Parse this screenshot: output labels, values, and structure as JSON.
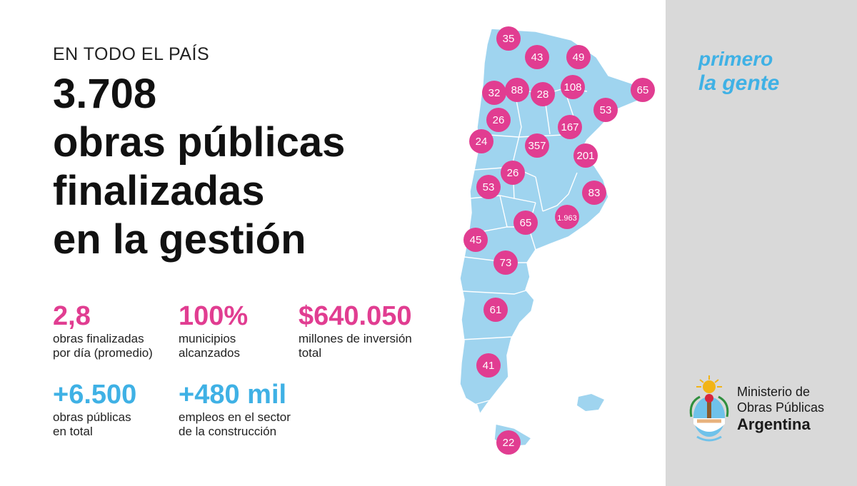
{
  "kicker": "EN TODO EL PAÍS",
  "headline": {
    "line1": "3.708",
    "line2": "obras públicas",
    "line3": "finalizadas",
    "line4": "en la gestión"
  },
  "stats": {
    "per_day": {
      "value": "2,8",
      "label1": "obras finalizadas",
      "label2": "por día (promedio)"
    },
    "municipios": {
      "value": "100%",
      "label1": "municipios",
      "label2": "alcanzados"
    },
    "inversion": {
      "value": "$640.050",
      "label1": "millones de inversión",
      "label2": "total"
    },
    "total": {
      "value": "+6.500",
      "label1": "obras públicas",
      "label2": "en total"
    },
    "empleos": {
      "value": "+480 mil",
      "label1": "empleos en el sector",
      "label2": "de la construcción"
    }
  },
  "brand": {
    "word1": "primero",
    "word2": "la gente"
  },
  "ministry": {
    "line1": "Ministerio de",
    "line2": "Obras Públicas",
    "line3": "Argentina"
  },
  "map": {
    "badges": [
      "35",
      "43",
      "49",
      "32",
      "88",
      "28",
      "108",
      "65",
      "26",
      "53",
      "167",
      "24",
      "357",
      "201",
      "26",
      "53",
      "83",
      "1.963",
      "65",
      "45",
      "73",
      "61",
      "41",
      "22"
    ]
  },
  "colors": {
    "pink": "#e13d91",
    "blue": "#3fb1e5",
    "map_fill": "#9fd4ef",
    "panel": "#d9d9d9"
  }
}
